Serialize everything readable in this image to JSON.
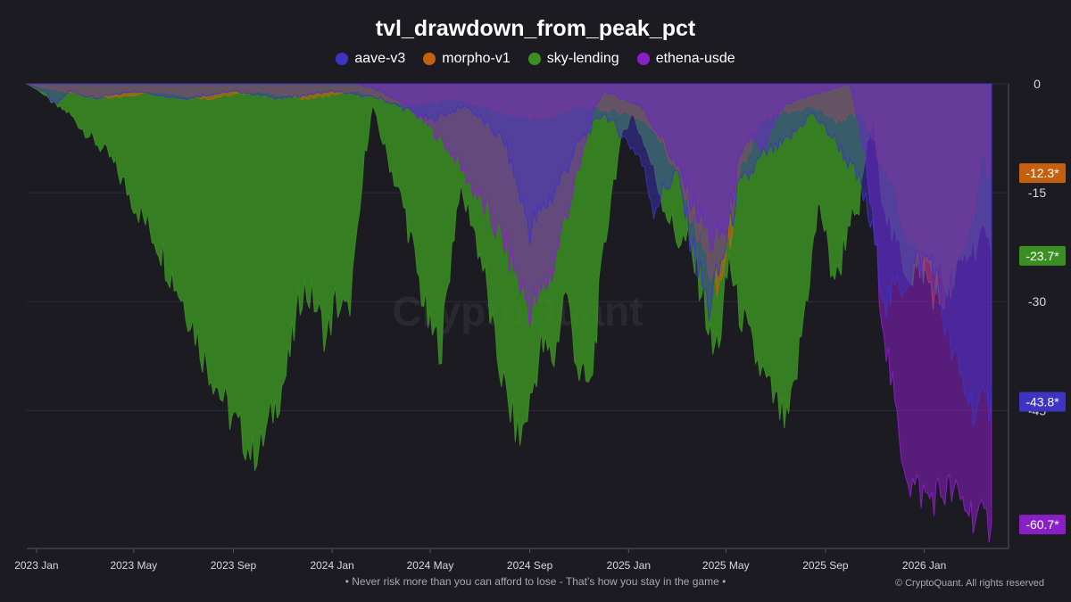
{
  "chart_data": {
    "type": "area",
    "title": "tvl_drawdown_from_peak_pct",
    "xlabel": "",
    "ylabel": "",
    "x_ticks": [
      "2023 Jan",
      "2023 May",
      "2023 Sep",
      "2024 Jan",
      "2024 May",
      "2024 Sep",
      "2025 Jan",
      "2025 May",
      "2025 Sep",
      "2026 Jan"
    ],
    "y_ticks": [
      "0",
      "-15",
      "-30",
      "-45"
    ],
    "ylim": [
      -64,
      0
    ],
    "xlim": [
      "2022-12-20",
      "2026-04-15"
    ],
    "grid": true,
    "legend_position": "top-center",
    "watermark": "CryptoQuant",
    "series": [
      {
        "name": "sky-lending",
        "color": "#3b8f22",
        "last_value_label": "-23.7*",
        "points": [
          [
            "2022-12-20",
            0
          ],
          [
            "2023-01-05",
            -1
          ],
          [
            "2023-01-25",
            -3
          ],
          [
            "2023-02-10",
            -4
          ],
          [
            "2023-02-25",
            -6
          ],
          [
            "2023-03-15",
            -8
          ],
          [
            "2023-04-01",
            -10
          ],
          [
            "2023-04-20",
            -14
          ],
          [
            "2023-05-10",
            -18
          ],
          [
            "2023-06-01",
            -22
          ],
          [
            "2023-06-20",
            -27
          ],
          [
            "2023-07-10",
            -32
          ],
          [
            "2023-07-25",
            -37
          ],
          [
            "2023-08-10",
            -41
          ],
          [
            "2023-08-25",
            -45
          ],
          [
            "2023-09-10",
            -48
          ],
          [
            "2023-09-25",
            -51
          ],
          [
            "2023-10-05",
            -50
          ],
          [
            "2023-10-20",
            -45
          ],
          [
            "2023-11-05",
            -40
          ],
          [
            "2023-11-15",
            -34
          ],
          [
            "2023-11-25",
            -28
          ],
          [
            "2023-12-10",
            -30
          ],
          [
            "2023-12-25",
            -35
          ],
          [
            "2024-01-05",
            -30
          ],
          [
            "2024-01-20",
            -32
          ],
          [
            "2024-02-01",
            -22
          ],
          [
            "2024-02-10",
            -10
          ],
          [
            "2024-02-20",
            -3
          ],
          [
            "2024-03-01",
            -7
          ],
          [
            "2024-03-15",
            -12
          ],
          [
            "2024-04-01",
            -18
          ],
          [
            "2024-04-15",
            -26
          ],
          [
            "2024-05-01",
            -34
          ],
          [
            "2024-05-15",
            -36
          ],
          [
            "2024-05-25",
            -25
          ],
          [
            "2024-06-05",
            -15
          ],
          [
            "2024-06-20",
            -18
          ],
          [
            "2024-07-05",
            -25
          ],
          [
            "2024-07-20",
            -36
          ],
          [
            "2024-08-05",
            -44
          ],
          [
            "2024-08-20",
            -49
          ],
          [
            "2024-09-01",
            -44
          ],
          [
            "2024-09-15",
            -36
          ],
          [
            "2024-10-01",
            -38
          ],
          [
            "2024-10-15",
            -28
          ],
          [
            "2024-11-01",
            -40
          ],
          [
            "2024-11-15",
            -42
          ],
          [
            "2024-11-25",
            -30
          ],
          [
            "2024-12-10",
            -15
          ],
          [
            "2024-12-25",
            -7
          ],
          [
            "2025-01-05",
            -4
          ],
          [
            "2025-01-20",
            -8
          ],
          [
            "2025-02-01",
            -12
          ],
          [
            "2025-02-15",
            -17
          ],
          [
            "2025-03-01",
            -21
          ],
          [
            "2025-03-15",
            -22
          ],
          [
            "2025-04-01",
            -28
          ],
          [
            "2025-04-15",
            -37
          ],
          [
            "2025-04-25",
            -34
          ],
          [
            "2025-05-05",
            -24
          ],
          [
            "2025-05-15",
            -30
          ],
          [
            "2025-06-01",
            -36
          ],
          [
            "2025-06-15",
            -40
          ],
          [
            "2025-07-01",
            -44
          ],
          [
            "2025-07-15",
            -47
          ],
          [
            "2025-07-25",
            -42
          ],
          [
            "2025-08-05",
            -32
          ],
          [
            "2025-08-15",
            -24
          ],
          [
            "2025-08-25",
            -16
          ],
          [
            "2025-09-05",
            -24
          ],
          [
            "2025-09-15",
            -27
          ],
          [
            "2025-10-01",
            -18
          ],
          [
            "2025-10-10",
            -20
          ],
          [
            "2025-10-20",
            -10
          ],
          [
            "2025-10-30",
            -5
          ],
          [
            "2025-11-10",
            -15
          ],
          [
            "2025-11-25",
            -22
          ],
          [
            "2025-12-15",
            -26
          ],
          [
            "2026-01-05",
            -25
          ],
          [
            "2026-02-01",
            -28
          ],
          [
            "2026-02-20",
            -24
          ],
          [
            "2026-03-10",
            -21
          ],
          [
            "2026-03-25",
            -23.7
          ]
        ]
      },
      {
        "name": "morpho-v1",
        "color": "#c5600f",
        "last_value_label": "-12.3*",
        "points": [
          [
            "2022-12-20",
            0
          ],
          [
            "2023-02-01",
            -1
          ],
          [
            "2023-04-01",
            -2
          ],
          [
            "2023-06-01",
            -1
          ],
          [
            "2023-08-01",
            -2
          ],
          [
            "2023-10-01",
            -1
          ],
          [
            "2023-12-01",
            -2
          ],
          [
            "2024-02-01",
            -1
          ],
          [
            "2024-04-01",
            -3
          ],
          [
            "2024-06-01",
            -2
          ],
          [
            "2024-08-01",
            -4
          ],
          [
            "2024-09-15",
            -5
          ],
          [
            "2024-11-01",
            -3
          ],
          [
            "2025-01-01",
            -4
          ],
          [
            "2025-02-01",
            -6
          ],
          [
            "2025-03-01",
            -12
          ],
          [
            "2025-03-20",
            -18
          ],
          [
            "2025-04-10",
            -25
          ],
          [
            "2025-04-20",
            -29
          ],
          [
            "2025-05-01",
            -24
          ],
          [
            "2025-05-20",
            -12
          ],
          [
            "2025-06-15",
            -5
          ],
          [
            "2025-07-15",
            -4
          ],
          [
            "2025-08-15",
            -3
          ],
          [
            "2025-09-15",
            -5
          ],
          [
            "2025-10-15",
            -4
          ],
          [
            "2025-11-15",
            -12
          ],
          [
            "2025-12-10",
            -20
          ],
          [
            "2026-01-01",
            -26
          ],
          [
            "2026-01-20",
            -30
          ],
          [
            "2026-02-05",
            -28
          ],
          [
            "2026-02-20",
            -22
          ],
          [
            "2026-03-05",
            -16
          ],
          [
            "2026-03-15",
            -10
          ],
          [
            "2026-03-25",
            -12.3
          ]
        ]
      },
      {
        "name": "ethena-usde",
        "color": "#8b1fc6",
        "last_value_label": "-60.7*",
        "points": [
          [
            "2022-12-20",
            0
          ],
          [
            "2024-02-01",
            0
          ],
          [
            "2024-03-01",
            -1
          ],
          [
            "2024-04-01",
            -3
          ],
          [
            "2024-05-01",
            -6
          ],
          [
            "2024-06-01",
            -10
          ],
          [
            "2024-07-01",
            -16
          ],
          [
            "2024-08-01",
            -22
          ],
          [
            "2024-09-01",
            -31
          ],
          [
            "2024-09-15",
            -29
          ],
          [
            "2024-10-01",
            -25
          ],
          [
            "2024-10-15",
            -18
          ],
          [
            "2024-11-01",
            -12
          ],
          [
            "2024-11-15",
            -5
          ],
          [
            "2024-12-01",
            -1
          ],
          [
            "2025-01-15",
            -3
          ],
          [
            "2025-02-15",
            -8
          ],
          [
            "2025-03-15",
            -15
          ],
          [
            "2025-04-15",
            -22
          ],
          [
            "2025-05-01",
            -20
          ],
          [
            "2025-05-15",
            -12
          ],
          [
            "2025-06-01",
            -7
          ],
          [
            "2025-06-15",
            -10
          ],
          [
            "2025-07-01",
            -5
          ],
          [
            "2025-07-15",
            -3
          ],
          [
            "2025-08-01",
            -2
          ],
          [
            "2025-09-01",
            -1
          ],
          [
            "2025-10-01",
            0
          ],
          [
            "2025-10-20",
            -10
          ],
          [
            "2025-11-01",
            -22
          ],
          [
            "2025-11-15",
            -36
          ],
          [
            "2025-12-01",
            -49
          ],
          [
            "2025-12-15",
            -55
          ],
          [
            "2026-01-05",
            -57
          ],
          [
            "2026-02-01",
            -56
          ],
          [
            "2026-02-20",
            -58
          ],
          [
            "2026-03-10",
            -60
          ],
          [
            "2026-03-25",
            -60.7
          ]
        ]
      },
      {
        "name": "aave-v3",
        "color": "#3f33c4",
        "last_value_label": "-43.8*",
        "points": [
          [
            "2022-12-20",
            0
          ],
          [
            "2023-01-10",
            -1
          ],
          [
            "2023-01-25",
            -3
          ],
          [
            "2023-02-10",
            -1
          ],
          [
            "2023-03-15",
            -2
          ],
          [
            "2023-05-01",
            -1
          ],
          [
            "2023-07-01",
            -2
          ],
          [
            "2023-09-01",
            -1
          ],
          [
            "2023-11-01",
            -2
          ],
          [
            "2024-01-01",
            -1
          ],
          [
            "2024-03-01",
            -2
          ],
          [
            "2024-05-01",
            -5
          ],
          [
            "2024-06-15",
            -3
          ],
          [
            "2024-08-01",
            -8
          ],
          [
            "2024-09-01",
            -20
          ],
          [
            "2024-10-01",
            -15
          ],
          [
            "2024-11-01",
            -8
          ],
          [
            "2024-12-01",
            -4
          ],
          [
            "2025-01-15",
            -10
          ],
          [
            "2025-02-01",
            -17
          ],
          [
            "2025-03-01",
            -12
          ],
          [
            "2025-03-20",
            -22
          ],
          [
            "2025-04-10",
            -31
          ],
          [
            "2025-04-25",
            -25
          ],
          [
            "2025-05-15",
            -15
          ],
          [
            "2025-06-15",
            -10
          ],
          [
            "2025-07-15",
            -8
          ],
          [
            "2025-08-15",
            -4
          ],
          [
            "2025-09-15",
            -8
          ],
          [
            "2025-10-15",
            -14
          ],
          [
            "2025-11-01",
            -22
          ],
          [
            "2025-11-15",
            -30
          ],
          [
            "2025-12-01",
            -28
          ],
          [
            "2025-12-20",
            -25
          ],
          [
            "2026-01-10",
            -24
          ],
          [
            "2026-02-01",
            -36
          ],
          [
            "2026-02-20",
            -42
          ],
          [
            "2026-03-05",
            -45
          ],
          [
            "2026-03-25",
            -43.8
          ]
        ]
      }
    ]
  },
  "legend": [
    {
      "label": "aave-v3",
      "color": "#3f33c4"
    },
    {
      "label": "morpho-v1",
      "color": "#c5600f"
    },
    {
      "label": "sky-lending",
      "color": "#3b8f22"
    },
    {
      "label": "ethena-usde",
      "color": "#8b1fc6"
    }
  ],
  "footer": {
    "note": "• Never risk more than you can afford to lose - That’s how you stay in the game •",
    "copyright": "© CryptoQuant. All rights reserved"
  }
}
